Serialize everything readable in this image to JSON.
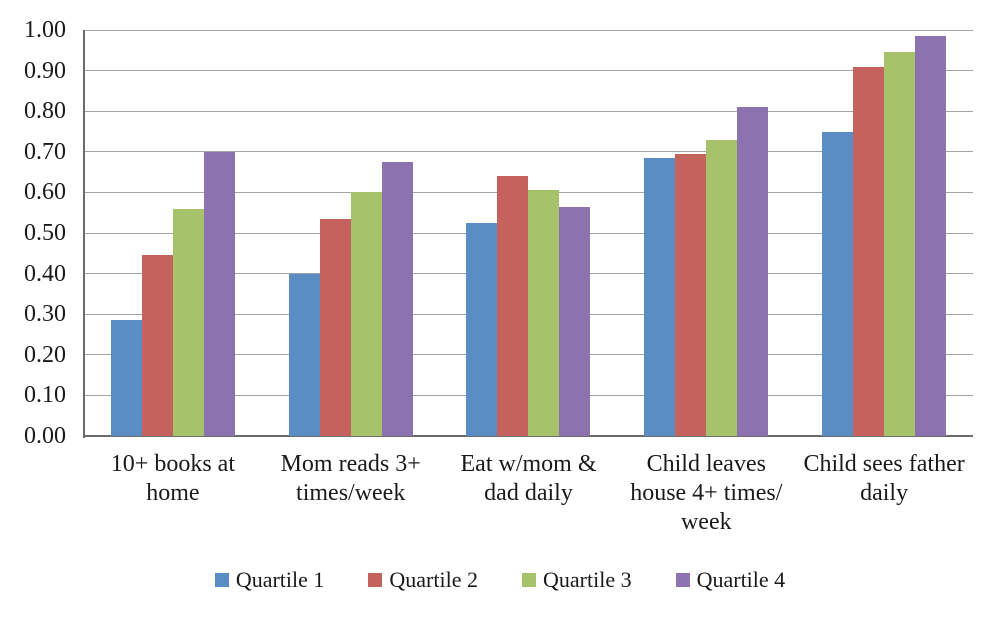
{
  "chart_data": {
    "type": "bar",
    "title": "",
    "xlabel": "",
    "ylabel": "",
    "categories": [
      "10+ books at home",
      "Mom reads 3+ times/week",
      "Eat w/mom & dad daily",
      "Child leaves house 4+ times/week",
      "Child sees father daily"
    ],
    "category_label_lines": [
      [
        "10+ books at",
        "home"
      ],
      [
        "Mom reads 3+",
        "times/week"
      ],
      [
        "Eat w/mom &",
        "dad daily"
      ],
      [
        "Child leaves",
        "house 4+ times/",
        "week"
      ],
      [
        "Child sees father",
        "daily"
      ]
    ],
    "series": [
      {
        "name": "Quartile 1",
        "color": "#5B8DC5",
        "values": [
          0.285,
          0.4,
          0.525,
          0.685,
          0.75
        ]
      },
      {
        "name": "Quartile 2",
        "color": "#C4625D",
        "values": [
          0.445,
          0.535,
          0.64,
          0.695,
          0.91
        ]
      },
      {
        "name": "Quartile 3",
        "color": "#A6C26B",
        "values": [
          0.56,
          0.6,
          0.605,
          0.73,
          0.945
        ]
      },
      {
        "name": "Quartile 4",
        "color": "#8C73AF",
        "values": [
          0.7,
          0.675,
          0.565,
          0.81,
          0.985
        ]
      }
    ],
    "ylim": [
      0.0,
      1.0
    ],
    "ytick_labels": [
      "0.00",
      "0.10",
      "0.20",
      "0.30",
      "0.40",
      "0.50",
      "0.60",
      "0.70",
      "0.80",
      "0.90",
      "1.00"
    ],
    "grid": true,
    "legend_position": "bottom",
    "gridline_color": "#a3a3a3",
    "axis_color": "#6b6b6b"
  }
}
